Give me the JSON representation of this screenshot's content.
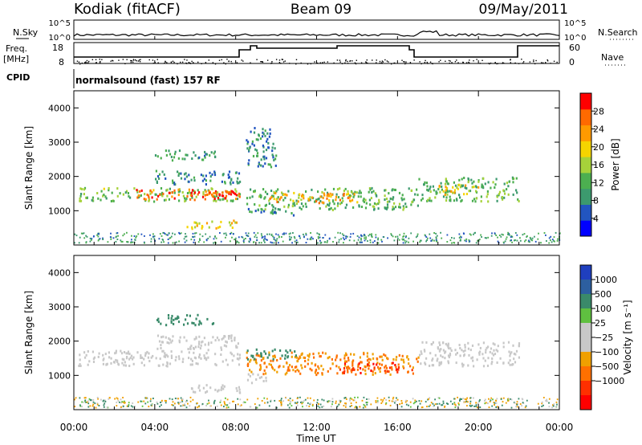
{
  "header": {
    "station": "Kodiak (fitACF)",
    "beam": "Beam 09",
    "date": "09/May/2011",
    "cpid_text": "normalsound (fast) 157 RF"
  },
  "strip_labels": {
    "nsky": "N.Sky",
    "nsearch": "N.Search",
    "freq_line1": "Freq.",
    "freq_line2": "[MHz]",
    "nave": "Nave",
    "cpid": "CPID",
    "noise_top": "10^5",
    "noise_bottom": "10^0",
    "freq_top": "18",
    "freq_bottom": "8",
    "nave_top": "60",
    "nave_bottom": "0"
  },
  "colors": {
    "power_scale": [
      "#0000ff",
      "#2255c0",
      "#3c9a6e",
      "#4caf50",
      "#a6d23a",
      "#f5d400",
      "#ff9a00",
      "#ff6a00",
      "#ff0000"
    ],
    "velocity_scale": [
      "#1f3fbf",
      "#2d5fa0",
      "#3a8a6a",
      "#5fc040",
      "#c8c8c8",
      "#c8c8c8",
      "#f0a000",
      "#ff7000",
      "#ff3000",
      "#ff0000"
    ]
  },
  "chart_data": [
    {
      "type": "heatmap",
      "name": "power",
      "xlabel": "",
      "ylabel": "Slant Range [km]",
      "xlim_hours": [
        0,
        24
      ],
      "ylim": [
        0,
        4500
      ],
      "yticks": [
        "1000",
        "2000",
        "3000",
        "4000"
      ],
      "colorbar_label": "Power [dB]",
      "colorbar_ticks": [
        "4",
        "8",
        "12",
        "16",
        "20",
        "24",
        "28"
      ],
      "colorbar_range": [
        0,
        32
      ],
      "bands": [
        {
          "t0": 0.2,
          "t1": 8.2,
          "r0": 1300,
          "r1": 1700,
          "level": 14
        },
        {
          "t0": 3.0,
          "t1": 8.2,
          "r0": 1350,
          "r1": 1650,
          "level": 26
        },
        {
          "t0": 6.0,
          "t1": 8.2,
          "r0": 1400,
          "r1": 1600,
          "level": 30
        },
        {
          "t0": 4.0,
          "t1": 8.2,
          "r0": 1800,
          "r1": 2200,
          "level": 8
        },
        {
          "t0": 5.5,
          "t1": 8.2,
          "r0": 500,
          "r1": 750,
          "level": 20
        },
        {
          "t0": 4.0,
          "t1": 7.0,
          "r0": 2500,
          "r1": 2800,
          "level": 10
        },
        {
          "t0": 8.5,
          "t1": 17.0,
          "r0": 1050,
          "r1": 1700,
          "level": 12
        },
        {
          "t0": 9.5,
          "t1": 14.0,
          "r0": 1250,
          "r1": 1550,
          "level": 22
        },
        {
          "t0": 8.5,
          "t1": 11.0,
          "r0": 900,
          "r1": 1100,
          "level": 10
        },
        {
          "t0": 17.0,
          "t1": 22.0,
          "r0": 1300,
          "r1": 2000,
          "level": 12
        },
        {
          "t0": 18.0,
          "t1": 20.0,
          "r0": 1500,
          "r1": 1800,
          "level": 20
        },
        {
          "t0": 8.5,
          "t1": 10.0,
          "r0": 2300,
          "r1": 3500,
          "level": 8
        }
      ]
    },
    {
      "type": "heatmap",
      "name": "velocity",
      "xlabel": "Time UT",
      "ylabel": "Slant Range [km]",
      "xlim_hours": [
        0,
        24
      ],
      "xticks": [
        "00:00",
        "04:00",
        "08:00",
        "12:00",
        "16:00",
        "20:00",
        "00:00"
      ],
      "ylim": [
        0,
        4500
      ],
      "yticks": [
        "1000",
        "2000",
        "3000",
        "4000"
      ],
      "colorbar_label": "Velocity [m s⁻¹]",
      "colorbar_ticks": [
        "1000",
        "500",
        "100",
        "25",
        "−25",
        "−100",
        "−500",
        "−1000"
      ],
      "bands": [
        {
          "t0": 0.2,
          "t1": 8.2,
          "r0": 1300,
          "r1": 1750,
          "value": 0
        },
        {
          "t0": 4.0,
          "t1": 8.2,
          "r0": 1750,
          "r1": 2200,
          "value": 0
        },
        {
          "t0": 5.5,
          "t1": 8.2,
          "r0": 500,
          "r1": 750,
          "value": 0
        },
        {
          "t0": 4.0,
          "t1": 7.0,
          "r0": 2500,
          "r1": 2800,
          "value": 200
        },
        {
          "t0": 8.5,
          "t1": 17.0,
          "r0": 1050,
          "r1": 1700,
          "value": -300
        },
        {
          "t0": 8.5,
          "t1": 11.0,
          "r0": 1500,
          "r1": 1800,
          "value": 150
        },
        {
          "t0": 13.0,
          "t1": 16.8,
          "r0": 1100,
          "r1": 1400,
          "value": -800
        },
        {
          "t0": 17.0,
          "t1": 22.0,
          "r0": 1300,
          "r1": 2000,
          "value": 0
        },
        {
          "t0": 8.5,
          "t1": 9.5,
          "r0": 800,
          "r1": 1100,
          "value": 0
        }
      ]
    }
  ]
}
